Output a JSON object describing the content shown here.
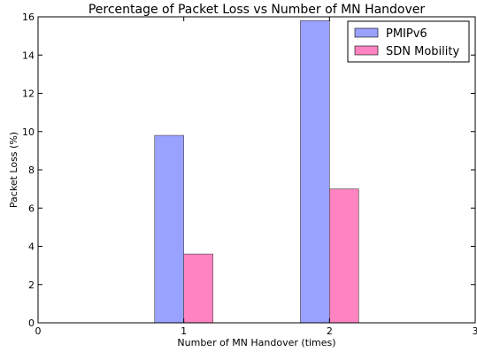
{
  "chart_data": {
    "type": "bar",
    "title": "Percentage of Packet Loss vs Number of MN Handover",
    "xlabel": "Number of MN Handover (times)",
    "ylabel": "Packet Loss (%)",
    "xlim": [
      0,
      3
    ],
    "ylim": [
      0,
      16
    ],
    "xticks": [
      "0",
      "1",
      "2",
      "3"
    ],
    "yticks": [
      "0",
      "2",
      "4",
      "6",
      "8",
      "10",
      "12",
      "14",
      "16"
    ],
    "x": [
      1,
      2
    ],
    "series": [
      {
        "name": "PMIPv6",
        "values": [
          9.8,
          15.8
        ],
        "color": "#9aa2ff"
      },
      {
        "name": "SDN Mobility",
        "values": [
          3.6,
          7.0
        ],
        "color": "#ff83c1"
      }
    ],
    "grid": false,
    "legend_position": "top-right"
  }
}
